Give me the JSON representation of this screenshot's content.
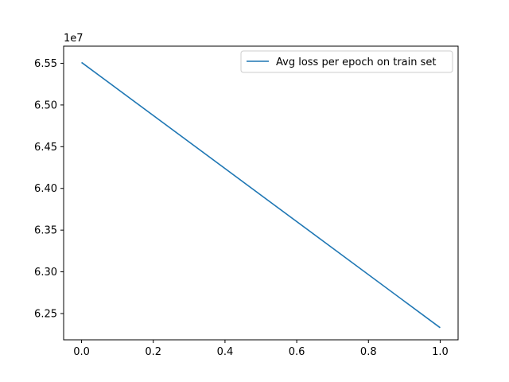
{
  "chart_data": {
    "type": "line",
    "title": "",
    "xlabel": "",
    "ylabel": "",
    "offset_label": "1e7",
    "xlim": [
      -0.05,
      1.05
    ],
    "ylim": [
      6.2185,
      6.5705
    ],
    "x_ticks": [
      0.0,
      0.2,
      0.4,
      0.6,
      0.8,
      1.0
    ],
    "x_tick_labels": [
      "0.0",
      "0.2",
      "0.4",
      "0.6",
      "0.8",
      "1.0"
    ],
    "y_ticks": [
      6.25,
      6.3,
      6.35,
      6.4,
      6.45,
      6.5,
      6.55
    ],
    "y_tick_labels": [
      "6.25",
      "6.30",
      "6.35",
      "6.40",
      "6.45",
      "6.50",
      "6.55"
    ],
    "grid": false,
    "legend_position": "top-right",
    "series": [
      {
        "name": "Avg loss per epoch on train set",
        "color": "#1f77b4",
        "x": [
          0.0,
          1.0
        ],
        "y": [
          6.551,
          6.233
        ]
      }
    ]
  }
}
